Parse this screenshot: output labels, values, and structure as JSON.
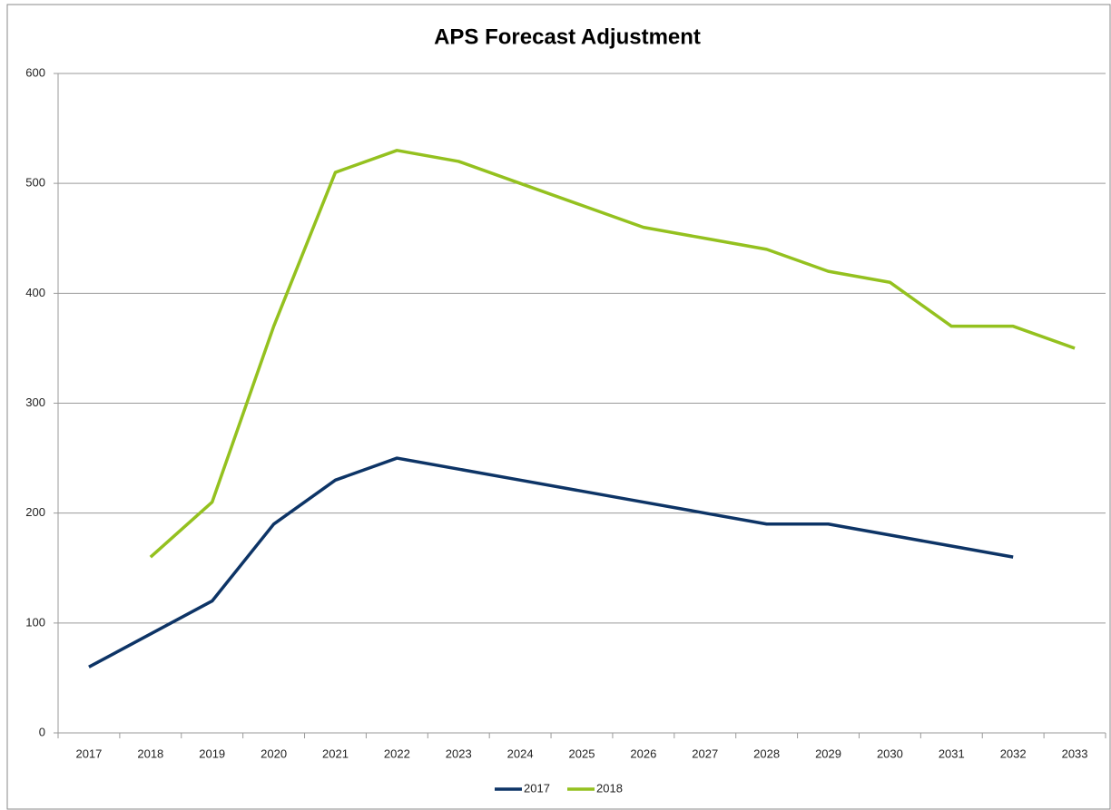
{
  "chart_data": {
    "type": "line",
    "title": "APS Forecast Adjustment",
    "categories": [
      "2017",
      "2018",
      "2019",
      "2020",
      "2021",
      "2022",
      "2023",
      "2024",
      "2025",
      "2026",
      "2027",
      "2028",
      "2029",
      "2030",
      "2031",
      "2032",
      "2033"
    ],
    "series": [
      {
        "name": "2017",
        "color": "#0d3466",
        "values": [
          60,
          90,
          120,
          190,
          230,
          250,
          240,
          230,
          220,
          210,
          200,
          190,
          190,
          180,
          170,
          160,
          null
        ]
      },
      {
        "name": "2018",
        "color": "#94c11f",
        "values": [
          null,
          160,
          210,
          370,
          510,
          530,
          520,
          500,
          480,
          460,
          450,
          440,
          420,
          410,
          370,
          370,
          350
        ]
      }
    ],
    "ylim": [
      0,
      600
    ],
    "yticks": [
      0,
      100,
      200,
      300,
      400,
      500,
      600
    ],
    "grid": true,
    "legend": "bottom"
  }
}
